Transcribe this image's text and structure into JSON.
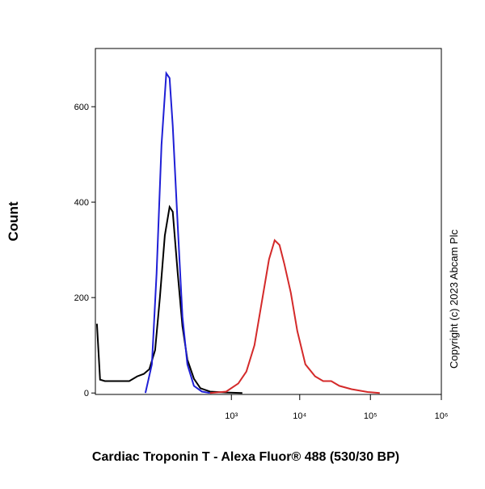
{
  "chart_data": {
    "type": "line",
    "ylabel": "Count",
    "xlabel": "Cardiac Troponin T - Alexa Fluor® 488 (530/30 BP)",
    "annotation": "Copyright (c) 2023 Abcam Plc",
    "xscale": "biexponential",
    "xlim": [
      -650,
      1000000
    ],
    "ylim": [
      -3,
      722
    ],
    "xticks": [
      {
        "value": 1000,
        "label": "10³"
      },
      {
        "value": 10000,
        "label": "10⁴"
      },
      {
        "value": 100000,
        "label": "10⁵"
      },
      {
        "value": 1000000,
        "label": "10⁶"
      }
    ],
    "yticks": [
      0,
      200,
      400,
      600
    ],
    "series": [
      {
        "color": "#000000",
        "x": [
          -614,
          -544,
          -450,
          -150,
          -93,
          -56,
          -30,
          -8,
          8,
          27,
          48,
          64,
          93,
          125,
          164,
          226,
          302,
          450,
          829,
          1470
        ],
        "values": [
          145,
          28,
          25,
          25,
          35,
          40,
          50,
          90,
          200,
          330,
          390,
          380,
          250,
          140,
          70,
          30,
          10,
          3,
          1,
          0
        ]
      },
      {
        "color": "#1f1fd6",
        "x": [
          -48,
          -20,
          -3,
          14,
          33,
          48,
          64,
          93,
          125,
          164,
          226,
          323,
          450
        ],
        "values": [
          0,
          60,
          250,
          520,
          670,
          660,
          560,
          350,
          160,
          60,
          15,
          3,
          0
        ]
      },
      {
        "color": "#d42a2a",
        "x": [
          450,
          829,
          1277,
          1690,
          2228,
          2925,
          3630,
          4380,
          5150,
          6040,
          7470,
          9240,
          12030,
          16530,
          21530,
          28020,
          36460,
          53960,
          91320,
          135400
        ],
        "values": [
          0,
          3,
          20,
          45,
          100,
          200,
          280,
          320,
          310,
          270,
          210,
          130,
          60,
          35,
          25,
          25,
          15,
          8,
          2,
          0
        ]
      }
    ]
  }
}
